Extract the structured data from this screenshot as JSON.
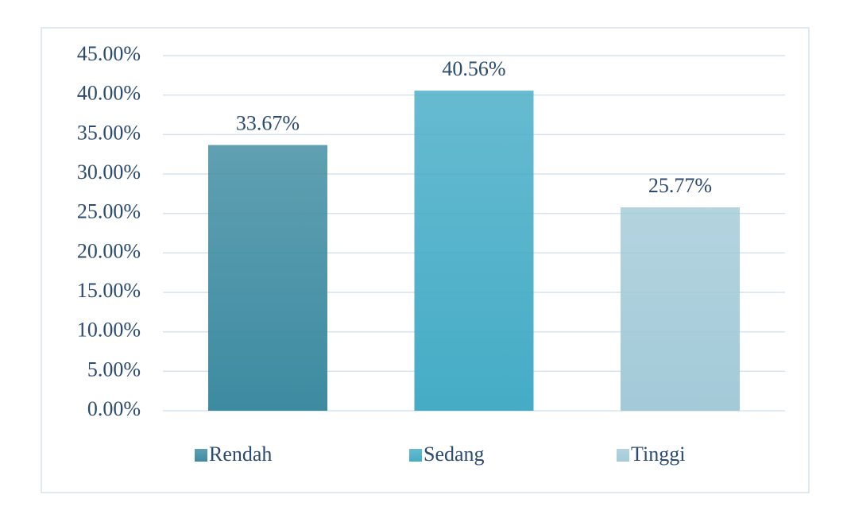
{
  "chart_data": {
    "type": "bar",
    "categories": [
      null
    ],
    "series": [
      {
        "name": "Rendah",
        "color": "#3d8ba1",
        "values": [
          33.67
        ],
        "value_labels": [
          "33.67%"
        ]
      },
      {
        "name": "Sedang",
        "color": "#45acc6",
        "values": [
          40.56
        ],
        "value_labels": [
          "40.56%"
        ]
      },
      {
        "name": "Tinggi",
        "color": "#a3cad8",
        "values": [
          25.77
        ],
        "value_labels": [
          "25.77%"
        ]
      }
    ],
    "ylim": [
      0,
      45
    ],
    "yticks": [
      {
        "value": 0,
        "label": "0.00%"
      },
      {
        "value": 5,
        "label": "5.00%"
      },
      {
        "value": 10,
        "label": "10.00%"
      },
      {
        "value": 15,
        "label": "15.00%"
      },
      {
        "value": 20,
        "label": "20.00%"
      },
      {
        "value": 25,
        "label": "25.00%"
      },
      {
        "value": 30,
        "label": "30.00%"
      },
      {
        "value": 35,
        "label": "35.00%"
      },
      {
        "value": 40,
        "label": "40.00%"
      },
      {
        "value": 45,
        "label": "45.00%"
      }
    ],
    "grid": true,
    "legend": "bottom"
  }
}
